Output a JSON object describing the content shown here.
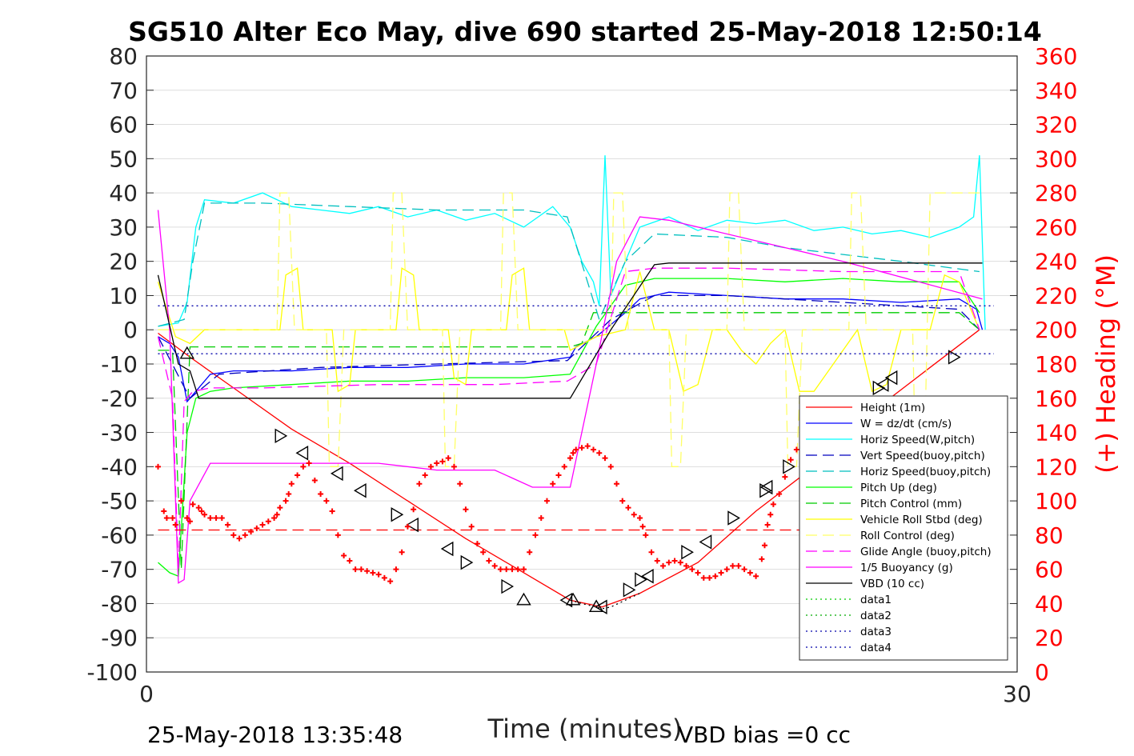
{
  "chart_data": {
    "type": "line",
    "title": "SG510 Alter Eco May, dive 690 started 25-May-2018 12:50:14",
    "xlabel": "Time (minutes)",
    "ylabel": "",
    "ylabel_right": "(+) Heading (°M)",
    "xlim": [
      0,
      30
    ],
    "ylim": [
      -100,
      80
    ],
    "ylim_right": [
      0,
      360
    ],
    "x_ticks": [
      "0",
      "30"
    ],
    "y_ticks": [
      "80",
      "70",
      "60",
      "50",
      "40",
      "30",
      "20",
      "10",
      "0",
      "-10",
      "-20",
      "-30",
      "-40",
      "-50",
      "-60",
      "-70",
      "-80",
      "-90",
      "-100"
    ],
    "y_ticks_right": [
      "360",
      "340",
      "320",
      "300",
      "280",
      "260",
      "240",
      "220",
      "200",
      "180",
      "160",
      "140",
      "120",
      "100",
      "80",
      "60",
      "40",
      "20",
      "0"
    ],
    "grid": true,
    "legend_placement": "bottom-right",
    "footer_left": "25-May-2018 13:35:48",
    "footer_right": "VBD bias =0 cc",
    "series": [
      {
        "name": "Height (1m)",
        "color": "#ff0000",
        "style": "solid",
        "x": [
          0.4,
          1.5,
          3,
          5,
          7,
          9,
          11,
          13,
          14.6,
          15.7,
          17,
          19,
          21,
          23,
          25,
          27,
          28.7
        ],
        "y": [
          -1,
          -8,
          -17,
          -29,
          -39,
          -50,
          -61,
          -71,
          -79,
          -81,
          -77,
          -68,
          -53,
          -40,
          -24,
          -11,
          0
        ]
      },
      {
        "name": "W = dz/dt (cm/s)",
        "color": "#0000ff",
        "style": "solid",
        "x": [
          0.4,
          0.8,
          1.1,
          1.4,
          1.7,
          2.2,
          3,
          5,
          7,
          9,
          11,
          13,
          14.6,
          14.8,
          15.5,
          16.5,
          17,
          18,
          20,
          22,
          24,
          26,
          28,
          28.6,
          28.8
        ],
        "y": [
          -2,
          -4,
          -8,
          -21,
          -18,
          -13,
          -12,
          -12,
          -11,
          -11,
          -10,
          -10,
          -8,
          -5,
          -2,
          5,
          9,
          11,
          10,
          9,
          9,
          8,
          9,
          6,
          0
        ]
      },
      {
        "name": "Horiz Speed(W,pitch)",
        "color": "#00ffff",
        "style": "solid",
        "x": [
          0.4,
          1.1,
          1.4,
          1.7,
          2,
          3,
          4,
          5,
          6,
          7,
          8,
          9,
          10,
          11,
          12,
          13,
          14,
          14.6,
          15,
          15.4,
          15.6,
          15.8,
          16,
          17,
          18,
          19,
          20,
          21,
          22,
          23,
          24,
          25,
          26,
          27,
          28,
          28.5,
          28.7,
          28.9
        ],
        "y": [
          1,
          2,
          8,
          30,
          38,
          37,
          40,
          36,
          35,
          34,
          36,
          33,
          35,
          32,
          34,
          30,
          36,
          30,
          20,
          14,
          7,
          51,
          10,
          30,
          33,
          29,
          32,
          31,
          32,
          29,
          30,
          28,
          29,
          27,
          30,
          33,
          51,
          0
        ]
      },
      {
        "name": "Vert Speed(buoy,pitch)",
        "color": "#0000bf",
        "style": "dashed",
        "x": [
          0.4,
          1.5,
          2.5,
          6,
          10,
          14.5,
          16,
          17.5,
          20,
          24,
          28,
          28.7
        ],
        "y": [
          -2,
          -20,
          -13,
          -11,
          -10,
          -9,
          3,
          10,
          10,
          8,
          6,
          0
        ]
      },
      {
        "name": "Horiz Speed(buoy,pitch)",
        "color": "#00bfbf",
        "style": "dashed",
        "x": [
          0.4,
          1.3,
          1.6,
          2,
          4,
          7,
          10,
          13,
          14.5,
          15.6,
          16.5,
          17.5,
          20,
          22,
          24,
          26,
          28.7
        ],
        "y": [
          1,
          3,
          20,
          37,
          37,
          36,
          35,
          35,
          33,
          3,
          20,
          28,
          27,
          24,
          22,
          20,
          17
        ]
      },
      {
        "name": "Pitch Up (deg)",
        "color": "#00ff00",
        "style": "solid",
        "x": [
          0.4,
          0.8,
          1.1,
          1.4,
          1.7,
          2.2,
          3,
          5,
          7,
          9,
          11,
          13,
          14.6,
          15.5,
          16.5,
          17.5,
          20,
          22,
          24,
          26,
          28,
          28.7
        ],
        "y": [
          -68,
          -71,
          -72,
          -30,
          -20,
          -18,
          -17,
          -16,
          -15,
          -15,
          -14,
          -14,
          -13,
          1,
          13,
          15,
          15,
          14,
          15,
          14,
          14,
          5
        ]
      },
      {
        "name": "Pitch Control (mm)",
        "color": "#00cc00",
        "style": "dashed",
        "x": [
          0.4,
          0.9,
          1.2,
          1.5,
          4,
          10,
          14.6,
          15,
          15.4,
          16,
          20,
          28,
          28.7
        ],
        "y": [
          -6,
          -6,
          -70,
          -5,
          -5,
          -5,
          -5,
          -4,
          5,
          5,
          5,
          5,
          0
        ]
      },
      {
        "name": "Vehicle Roll Stbd (deg)",
        "color": "#ffff00",
        "style": "solid",
        "x": [
          0.4,
          1,
          1.5,
          2,
          4,
          4.6,
          4.8,
          5.2,
          5.4,
          6,
          6.4,
          6.6,
          7,
          7.2,
          8,
          8.6,
          8.8,
          9.2,
          9.4,
          10.4,
          10.6,
          11,
          11.2,
          12.4,
          12.6,
          13,
          13.2,
          14.4,
          14.6,
          15.5,
          16.5,
          17,
          17.5,
          18,
          18.5,
          19,
          19.5,
          20,
          20.5,
          21,
          21.5,
          22,
          22.5,
          23,
          24.5,
          25,
          25.5,
          26,
          27,
          27.5,
          28,
          28.7
        ],
        "y": [
          14,
          -2,
          -4,
          0,
          0,
          0,
          16,
          18,
          0,
          0,
          0,
          -18,
          -16,
          0,
          0,
          0,
          18,
          16,
          0,
          0,
          -14,
          -16,
          0,
          0,
          16,
          18,
          0,
          0,
          -6,
          -2,
          0,
          17,
          0,
          0,
          -18,
          -16,
          0,
          0,
          -6,
          -10,
          -4,
          0,
          -18,
          -18,
          0,
          -18,
          -16,
          0,
          0,
          16,
          14,
          0
        ]
      },
      {
        "name": "Roll Control (deg)",
        "color": "#ffff66",
        "style": "dashed",
        "x": [
          0.4,
          1.5,
          4.5,
          4.6,
          4.9,
          5.1,
          6.2,
          6.3,
          6.6,
          6.8,
          8.4,
          8.5,
          8.8,
          9,
          10.2,
          10.3,
          10.6,
          10.8,
          12.2,
          12.3,
          12.6,
          12.8,
          14.4,
          15,
          16,
          16.1,
          16.4,
          16.6,
          18,
          18.1,
          18.4,
          18.6,
          20,
          20.1,
          20.4,
          20.6,
          22,
          22.1,
          22.4,
          22.6,
          24.2,
          24.3,
          24.6,
          24.8,
          26.4,
          26.5,
          26.8,
          27,
          28.7
        ],
        "y": [
          0,
          0,
          0,
          40,
          40,
          0,
          0,
          -40,
          -40,
          0,
          0,
          40,
          40,
          0,
          0,
          -40,
          -40,
          0,
          0,
          40,
          40,
          0,
          0,
          0,
          0,
          40,
          40,
          0,
          0,
          -40,
          -40,
          0,
          0,
          40,
          40,
          0,
          0,
          -40,
          -40,
          0,
          0,
          40,
          40,
          0,
          0,
          -40,
          -40,
          40,
          40
        ]
      },
      {
        "name": "Glide Angle (buoy,pitch)",
        "color": "#ff00ff",
        "style": "dashed",
        "x": [
          0.4,
          0.9,
          1.1,
          1.3,
          1.6,
          2.2,
          4,
          8,
          12,
          14.5,
          15.5,
          16.5,
          17.5,
          20,
          24,
          28,
          28.7
        ],
        "y": [
          -2,
          -20,
          -70,
          -21,
          -18,
          -17,
          -17,
          -16,
          -16,
          -15,
          -10,
          17,
          18,
          18,
          17,
          17,
          0
        ]
      },
      {
        "name": "1/5 Buoyancy (g)",
        "color": "#ff00ff",
        "style": "solid",
        "x": [
          0.4,
          0.8,
          1.1,
          1.3,
          1.5,
          2.2,
          5,
          8,
          10,
          12,
          13.3,
          14.6,
          15.5,
          16.2,
          17,
          18,
          24,
          28.8
        ],
        "y": [
          35,
          0,
          -74,
          -73,
          -50,
          -39,
          -39,
          -39,
          -41,
          -41,
          -46,
          -46,
          -10,
          20,
          33,
          32,
          20,
          9
        ]
      },
      {
        "name": "VBD (10 cc)",
        "color": "#000000",
        "style": "solid",
        "x": [
          0.4,
          1.1,
          1.5,
          1.8,
          2.2,
          5,
          8,
          11,
          14.6,
          16,
          17.5,
          18,
          24,
          28.8
        ],
        "y": [
          16,
          -10,
          -12,
          -20,
          -20,
          -20,
          -20,
          -20,
          -20,
          0,
          19,
          19.5,
          19.5,
          19.5
        ]
      },
      {
        "name": "data1",
        "color": "#00cc00",
        "style": "dotted",
        "x": [],
        "y": []
      },
      {
        "name": "data2",
        "color": "#00aa00",
        "style": "dotted",
        "x": [],
        "y": []
      },
      {
        "name": "data3",
        "color": "#0000aa",
        "style": "dotted",
        "x": [
          0.4,
          29.2
        ],
        "y": [
          7,
          7
        ]
      },
      {
        "name": "data4",
        "color": "#0000aa",
        "style": "dotted",
        "x": [
          0.4,
          29.2
        ],
        "y": [
          -7,
          -7
        ]
      }
    ],
    "extra_lines": [
      {
        "name": "heading-reference",
        "color": "#ff0000",
        "style": "dashed",
        "axis": "right",
        "x": [
          0.4,
          29.2
        ],
        "y": [
          83,
          83
        ]
      },
      {
        "name": "depth-bottom-dotted",
        "color": "#000000",
        "style": "dotted",
        "axis": "left",
        "x": [
          14.6,
          15,
          15.5,
          15.7,
          16,
          16.5,
          17
        ],
        "y": [
          -79,
          -80,
          -81,
          -81.5,
          -81,
          -79,
          -77
        ]
      }
    ],
    "markers_triangles": {
      "x": [
        1.4,
        4.6,
        5.4,
        6.6,
        7.4,
        8.6,
        9.2,
        10.4,
        11,
        12.4,
        13,
        14.5,
        14.7,
        15.5,
        15.7,
        16.6,
        17,
        17.3,
        18.6,
        19.3,
        20.2,
        21.3,
        21.4,
        22.1,
        25.2,
        25.4,
        25.7,
        27.8
      ],
      "y": [
        -7,
        -31,
        -36,
        -42,
        -47,
        -54,
        -57,
        -64,
        -68,
        -75,
        -79,
        -79,
        -79,
        -81,
        -81,
        -76,
        -73,
        -72,
        -65,
        -62,
        -55,
        -47,
        -46,
        -40,
        -17,
        -16,
        -14,
        -8
      ],
      "dir": [
        "up",
        "right",
        "left",
        "left",
        "left",
        "right",
        "left",
        "left",
        "right",
        "right",
        "up",
        "left",
        "up",
        "up",
        "left",
        "right",
        "right",
        "left",
        "right",
        "left",
        "right",
        "right",
        "left",
        "right",
        "right",
        "left",
        "left",
        "right"
      ]
    },
    "heading_points": {
      "x": [
        0.4,
        0.6,
        0.7,
        0.9,
        1,
        1.2,
        1.4,
        1.5,
        1.6,
        1.8,
        1.9,
        2,
        2.2,
        2.4,
        2.6,
        2.8,
        3,
        3.2,
        3.4,
        3.6,
        3.8,
        4,
        4.2,
        4.4,
        4.5,
        4.6,
        4.8,
        4.9,
        5,
        5.2,
        5.4,
        5.6,
        5.8,
        6,
        6.2,
        6.4,
        6.6,
        6.8,
        7,
        7.2,
        7.4,
        7.6,
        7.8,
        8,
        8.2,
        8.4,
        8.6,
        8.8,
        9,
        9.2,
        9.4,
        9.6,
        9.8,
        10,
        10.2,
        10.4,
        10.6,
        10.8,
        11,
        11.2,
        11.4,
        11.6,
        11.8,
        12,
        12.2,
        12.4,
        12.6,
        12.8,
        13,
        13.2,
        13.4,
        13.6,
        13.8,
        14,
        14.2,
        14.4,
        14.6,
        14.7,
        14.8,
        15,
        15.2,
        15.4,
        15.6,
        15.8,
        16,
        16.2,
        16.4,
        16.6,
        16.8,
        17,
        17.1,
        17.2,
        17.4,
        17.6,
        17.8,
        18,
        18.2,
        18.4,
        18.6,
        18.8,
        19,
        19.2,
        19.4,
        19.6,
        19.8,
        20,
        20.2,
        20.4,
        20.6,
        20.8,
        21,
        21.2,
        21.3,
        21.4,
        21.5,
        21.6,
        21.8,
        22,
        22.2,
        22.4
      ],
      "y": [
        120,
        94,
        90,
        90,
        86,
        100,
        90,
        88,
        98,
        96,
        94,
        92,
        90,
        90,
        90,
        86,
        80,
        78,
        80,
        82,
        84,
        86,
        88,
        90,
        92,
        96,
        100,
        104,
        110,
        115,
        120,
        122,
        112,
        104,
        100,
        94,
        80,
        68,
        65,
        60,
        60,
        59,
        58,
        57,
        55,
        53,
        60,
        70,
        85,
        95,
        110,
        115,
        120,
        122,
        123,
        125,
        120,
        110,
        95,
        85,
        75,
        70,
        65,
        62,
        60,
        60,
        60,
        60,
        60,
        70,
        80,
        90,
        100,
        110,
        115,
        120,
        125,
        128,
        130,
        131,
        132,
        130,
        128,
        125,
        120,
        110,
        100,
        96,
        92,
        90,
        85,
        80,
        70,
        65,
        62,
        64,
        65,
        64,
        62,
        60,
        58,
        55,
        55,
        56,
        58,
        60,
        62,
        62,
        60,
        58,
        56,
        66,
        74,
        86,
        92,
        98,
        104,
        114,
        124,
        130
      ],
      "color": "#ff0000",
      "axis": "right"
    }
  }
}
